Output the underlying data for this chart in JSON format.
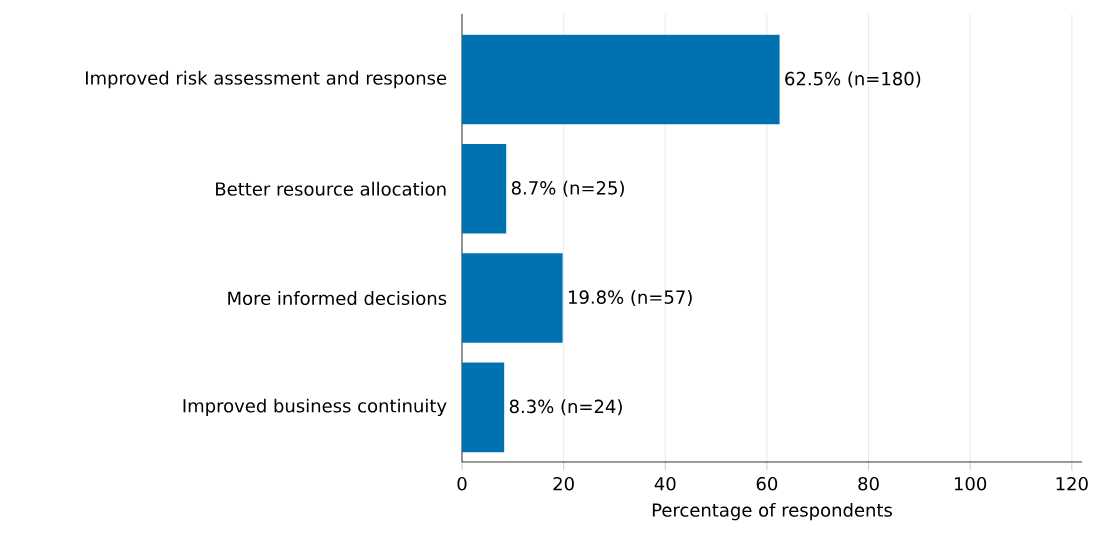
{
  "chart_data": {
    "type": "bar",
    "orientation": "horizontal",
    "categories": [
      "Improved risk assessment and response",
      "Better resource allocation",
      "More informed decisions",
      "Improved business continuity"
    ],
    "values": [
      62.5,
      8.7,
      19.8,
      8.3
    ],
    "value_labels": [
      "62.5% (n=180)",
      "8.7% (n=25)",
      "19.8% (n=57)",
      "8.3% (n=24)"
    ],
    "color": "#0072b2",
    "xlabel": "Percentage of respondents",
    "xlim": [
      0,
      122
    ],
    "xticks": [
      0,
      20,
      40,
      60,
      80,
      100,
      120
    ],
    "grid": "x"
  }
}
